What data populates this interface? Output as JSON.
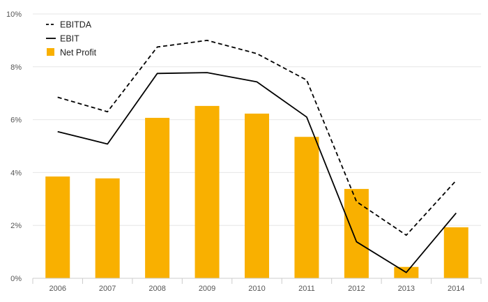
{
  "chart_data": {
    "type": "bar",
    "categories": [
      "2006",
      "2007",
      "2008",
      "2009",
      "2010",
      "2011",
      "2012",
      "2013",
      "2014"
    ],
    "series": [
      {
        "name": "Net Profit",
        "type": "bar",
        "color": "#f9b000",
        "values": [
          3.85,
          3.78,
          6.07,
          6.52,
          6.23,
          5.35,
          3.38,
          0.43,
          1.93
        ]
      },
      {
        "name": "EBITDA",
        "type": "line",
        "style": "dashed",
        "color": "#000000",
        "values": [
          6.85,
          6.3,
          8.75,
          9.0,
          8.5,
          7.5,
          2.9,
          1.63,
          3.7
        ]
      },
      {
        "name": "EBIT",
        "type": "line",
        "style": "solid",
        "color": "#000000",
        "values": [
          5.55,
          5.08,
          7.75,
          7.78,
          7.43,
          6.1,
          1.38,
          0.22,
          2.47
        ]
      }
    ],
    "y_ticks": [
      "0%",
      "2%",
      "4%",
      "6%",
      "8%",
      "10%"
    ],
    "ylim": [
      0,
      10
    ],
    "grid": true,
    "legend_position": "top-left",
    "legend": [
      "EBITDA",
      "EBIT",
      "Net Profit"
    ]
  }
}
